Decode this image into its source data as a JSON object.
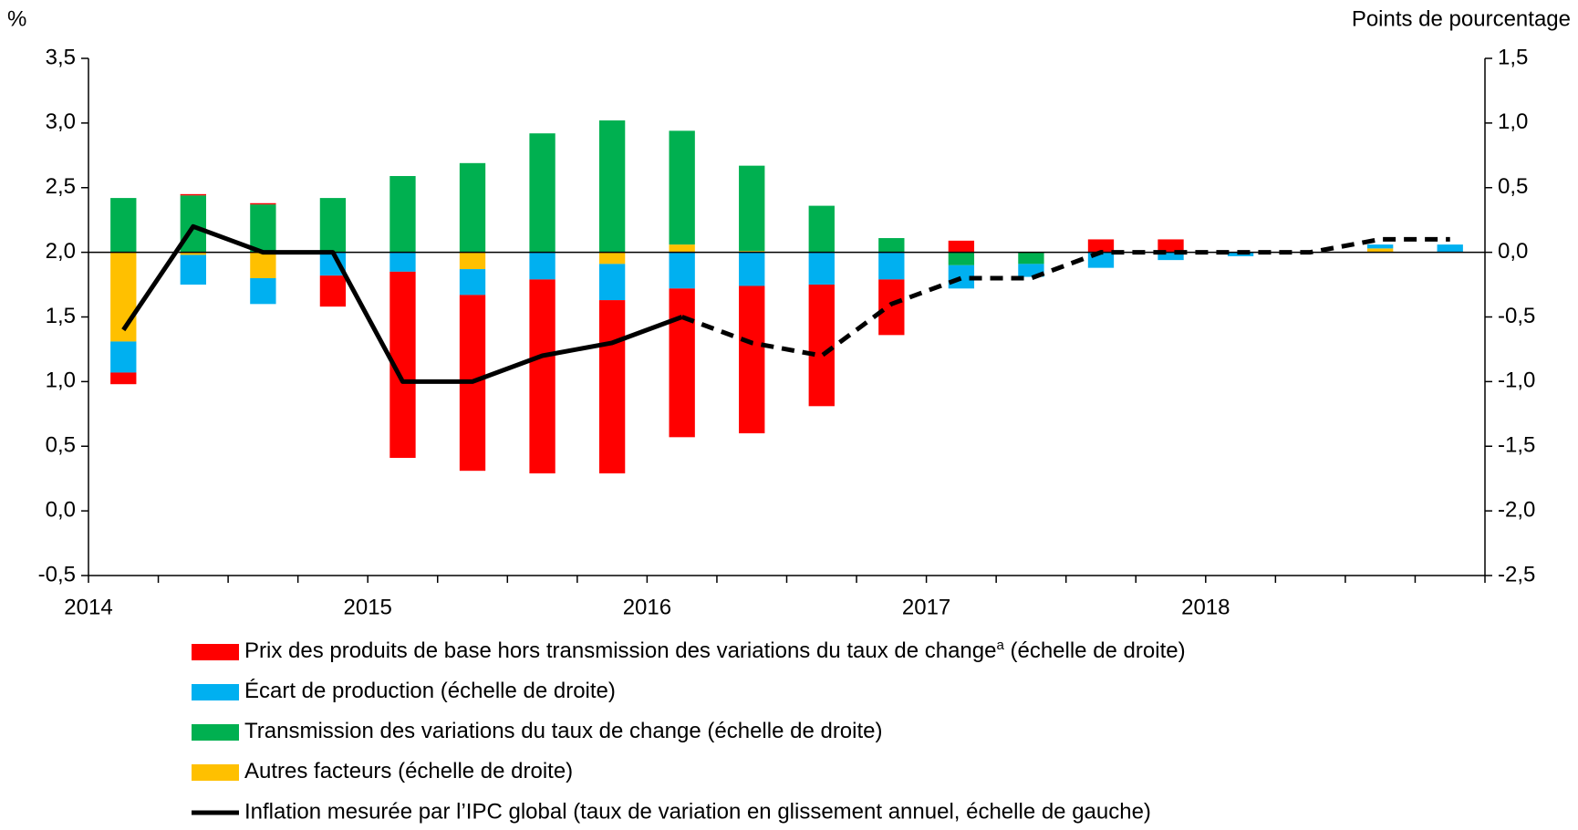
{
  "chart_data": {
    "type": "bar_line",
    "y_axis_label": "%",
    "y2_axis_label": "Points de pourcentage",
    "categories": [
      "2014",
      null,
      null,
      null,
      "2015",
      null,
      null,
      null,
      "2016",
      null,
      null,
      null,
      "2017",
      null,
      null,
      null,
      "2018",
      null,
      null,
      null
    ],
    "ylim": [
      -0.5,
      3.5
    ],
    "yticks": [
      {
        "value": -0.5,
        "label": "-0,5"
      },
      {
        "value": 0,
        "label": "0,0"
      },
      {
        "value": 0.5,
        "label": "0,5"
      },
      {
        "value": 1,
        "label": "1,0"
      },
      {
        "value": 1.5,
        "label": "1,5"
      },
      {
        "value": 2,
        "label": "2,0"
      },
      {
        "value": 2.5,
        "label": "2,5"
      },
      {
        "value": 3,
        "label": "3,0"
      },
      {
        "value": 3.5,
        "label": "3,5"
      }
    ],
    "y2lim": [
      -2.5,
      1.5
    ],
    "y2ticks": [
      {
        "value": -2.5,
        "label": "-2,5"
      },
      {
        "value": -2,
        "label": "-2,0"
      },
      {
        "value": -1.5,
        "label": "-1,5"
      },
      {
        "value": -1,
        "label": "-1,0"
      },
      {
        "value": -0.5,
        "label": "-0,5"
      },
      {
        "value": 0,
        "label": "0,0"
      },
      {
        "value": 0.5,
        "label": "0,5"
      },
      {
        "value": 1,
        "label": "1,0"
      },
      {
        "value": 1.5,
        "label": "1,5"
      }
    ],
    "stacked": true,
    "series": [
      {
        "name": "Prix des produits de base hors transmission des variations du taux de change",
        "name_sup": "a",
        "name_suffix": " (échelle de droite)",
        "color": "#ff0000",
        "axis": "y2",
        "values": [
          -0.09,
          0.01,
          0.01,
          -0.24,
          -1.44,
          -1.36,
          -1.5,
          -1.34,
          -1.15,
          -1.14,
          -0.94,
          -0.43,
          0.09,
          0,
          0.1,
          0.1,
          0,
          0,
          0,
          0
        ]
      },
      {
        "name": "Écart de production (échelle de droite)",
        "color": "#00b0f0",
        "axis": "y2",
        "values": [
          -0.24,
          -0.23,
          -0.2,
          -0.18,
          -0.15,
          -0.2,
          -0.21,
          -0.28,
          -0.28,
          -0.26,
          -0.25,
          -0.21,
          -0.18,
          -0.1,
          -0.12,
          -0.06,
          -0.03,
          0,
          0.03,
          0.06
        ]
      },
      {
        "name": "Transmission des variations du taux de change (échelle de droite)",
        "color": "#00b050",
        "axis": "y2",
        "values": [
          0.42,
          0.44,
          0.37,
          0.42,
          0.59,
          0.69,
          0.92,
          1.02,
          0.88,
          0.66,
          0.36,
          0.11,
          -0.1,
          -0.09,
          0,
          0,
          0,
          0,
          0,
          0
        ]
      },
      {
        "name": "Autres facteurs (échelle de droite)",
        "color": "#ffc000",
        "axis": "y2",
        "values": [
          -0.69,
          -0.02,
          -0.2,
          0,
          0,
          -0.13,
          0,
          -0.09,
          0.06,
          0.01,
          0,
          0,
          0,
          0,
          0,
          0,
          0,
          0,
          0.03,
          0
        ]
      }
    ],
    "line": {
      "name": "Inflation mesurée par l’IPC global (taux de variation en glissement annuel, échelle de gauche)",
      "color": "#000000",
      "axis": "y",
      "dashed_from": 8,
      "values": [
        1.4,
        2.2,
        2.0,
        2.0,
        1.0,
        1.0,
        1.2,
        1.3,
        1.5,
        1.3,
        1.2,
        1.6,
        1.8,
        1.8,
        2.0,
        2.0,
        2.0,
        2.0,
        2.1,
        2.1
      ]
    }
  }
}
